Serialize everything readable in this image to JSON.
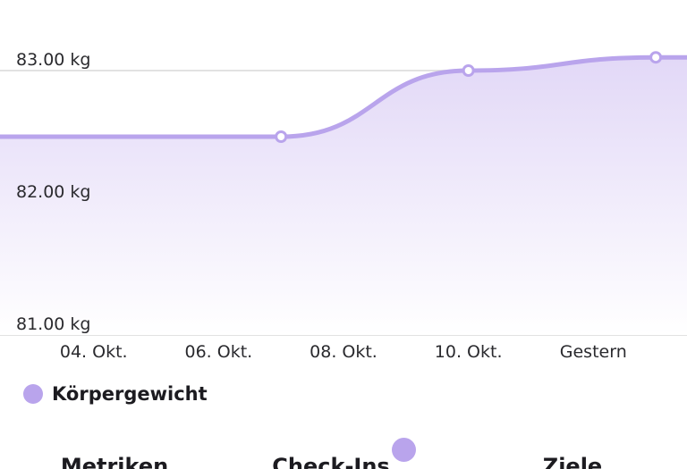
{
  "colors": {
    "accent": "#b9a4ec",
    "gridline": "#e2e2e2",
    "fill_top": "#e2d8f7",
    "fill_bottom": "#ffffff"
  },
  "chart_data": {
    "type": "area",
    "ylim": [
      81,
      83.1
    ],
    "yticks": [
      83,
      82,
      81
    ],
    "ytick_labels": [
      "83.00 kg",
      "82.00 kg",
      "81.00 kg"
    ],
    "xtick_labels": [
      "04. Okt.",
      "06. Okt.",
      "08. Okt.",
      "10. Okt.",
      "Gestern"
    ],
    "xticks": [
      4,
      6,
      8,
      10,
      12
    ],
    "xlim": [
      2.5,
      13.5
    ],
    "series": [
      {
        "name": "Körpergewicht",
        "x": [
          2.5,
          7.0,
          10.0,
          13.0,
          13.5
        ],
        "y": [
          82.5,
          82.5,
          83.0,
          83.1,
          83.1
        ],
        "markers": [
          false,
          true,
          true,
          true,
          false
        ]
      }
    ]
  },
  "legend": {
    "label": "Körpergewicht"
  },
  "tabs": [
    {
      "label": "Metriken"
    },
    {
      "label": "Check-Ins"
    },
    {
      "label": "Ziele"
    }
  ]
}
